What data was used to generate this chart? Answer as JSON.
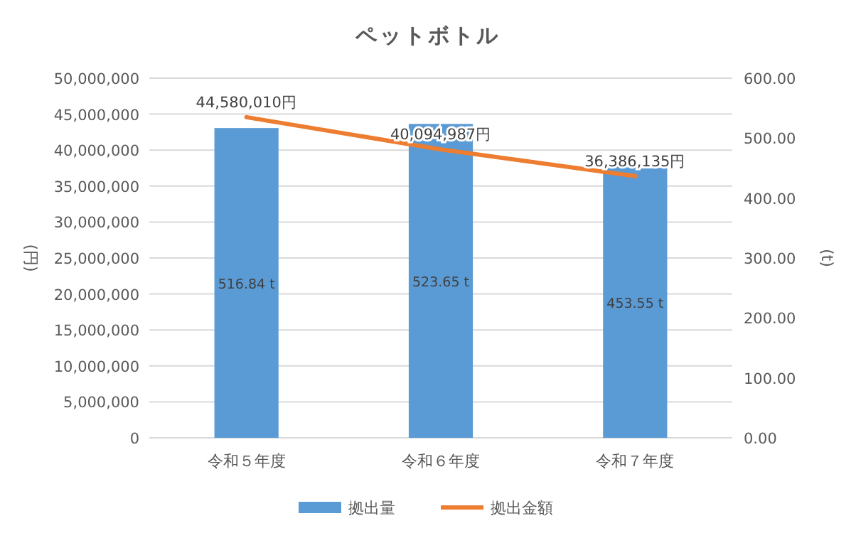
{
  "chart_data": {
    "type": "bar",
    "title": "ペットボトル",
    "ylabel": "(円)",
    "y2label": "(t)",
    "categories": [
      "令和５年度",
      "令和６年度",
      "令和７年度"
    ],
    "series": [
      {
        "name": "拠出量",
        "axis": "y2",
        "color": "#5b9bd5",
        "values": [
          516.84,
          523.65,
          453.55
        ],
        "value_labels": [
          "516.84 t",
          "523.65 t",
          "453.55 t"
        ]
      },
      {
        "name": "拠出金額",
        "type": "line",
        "axis": "y",
        "color": "#ed7d31",
        "values": [
          44580010,
          40094987,
          36386135
        ],
        "value_labels": [
          "44,580,010円",
          "40,094,987円",
          "36,386,135円"
        ]
      }
    ],
    "ylim": [
      0,
      50000000
    ],
    "yticks": [
      0,
      {
        "value": 5000000,
        "label": "5,000,000"
      },
      {
        "value": 10000000,
        "label": "10,000,000"
      },
      {
        "value": 15000000,
        "label": "15,000,000"
      },
      {
        "value": 20000000,
        "label": "20,000,000"
      },
      {
        "value": 25000000,
        "label": "25,000,000"
      },
      {
        "value": 30000000,
        "label": "30,000,000"
      },
      {
        "value": 35000000,
        "label": "35,000,000"
      },
      {
        "value": 40000000,
        "label": "40,000,000"
      },
      {
        "value": 45000000,
        "label": "45,000,000"
      },
      {
        "value": 50000000,
        "label": "50,000,000"
      }
    ],
    "y2lim": [
      0,
      600
    ],
    "y2ticks": [
      {
        "value": 0,
        "label": "0.00"
      },
      {
        "value": 100,
        "label": "100.00"
      },
      {
        "value": 200,
        "label": "200.00"
      },
      {
        "value": 300,
        "label": "300.00"
      },
      {
        "value": 400,
        "label": "400.00"
      },
      {
        "value": 500,
        "label": "500.00"
      },
      {
        "value": 600,
        "label": "600.00"
      }
    ],
    "grid": "y",
    "legend": "bottom",
    "marker": "none",
    "line_style": "solid"
  }
}
